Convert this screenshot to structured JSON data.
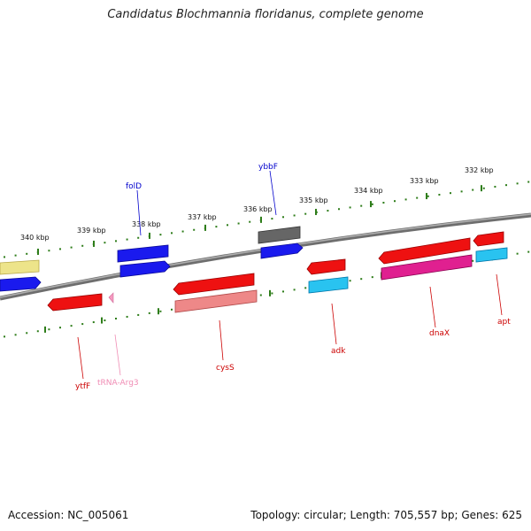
{
  "title": "Candidatus Blochmannia floridanus, complete genome",
  "footer": {
    "accession": "Accession: NC_005061",
    "stats": "Topology: circular; Length: 705,557 bp; Genes: 625"
  },
  "kbp_labels": [
    "340 kbp",
    "339 kbp",
    "338 kbp",
    "337 kbp",
    "336 kbp",
    "335 kbp",
    "334 kbp",
    "333 kbp",
    "332 kbp"
  ],
  "gene_labels": [
    {
      "id": "folD",
      "text": "folD",
      "color": "#0000cc"
    },
    {
      "id": "ybbF",
      "text": "ybbF",
      "color": "#0000cc"
    },
    {
      "id": "ytfF",
      "text": "ytfF",
      "color": "#cc0000"
    },
    {
      "id": "tRNA-Arg3",
      "text": "tRNA-Arg3",
      "color": "#f08cb4"
    },
    {
      "id": "cysS",
      "text": "cysS",
      "color": "#cc0000"
    },
    {
      "id": "adk",
      "text": "adk",
      "color": "#cc0000"
    },
    {
      "id": "dnaX",
      "text": "dnaX",
      "color": "#cc0000"
    },
    {
      "id": "apt",
      "text": "apt",
      "color": "#cc0000"
    }
  ],
  "colors": {
    "backbone": "#888888",
    "ticks": "#2e7d1a",
    "forward_cds": "#1a1aee",
    "reverse_cds": "#ee1111",
    "trna": "#f59ac0",
    "rrna_like_cyan": "#29c3f0",
    "magenta": "#e02090",
    "gray_feature": "#666666",
    "khaki": "#ede48a",
    "salmon": "#ee8888"
  }
}
